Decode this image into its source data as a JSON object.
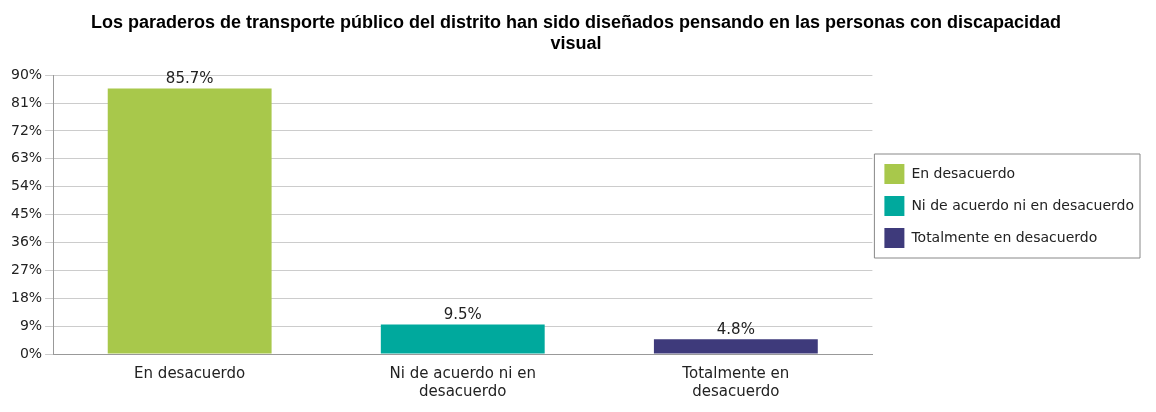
{
  "chart_data": {
    "type": "bar",
    "title": "Los paraderos de transporte público del distrito han sido diseñados pensando en las personas con discapacidad visual",
    "categories": [
      "En desacuerdo",
      "Ni de acuerdo ni en desacuerdo",
      "Totalmente en desacuerdo"
    ],
    "series": [
      {
        "name": "En desacuerdo",
        "color": "#a8c84b",
        "values": [
          85.7,
          null,
          null
        ],
        "value_labels": [
          "85.7%",
          null,
          null
        ]
      },
      {
        "name": "Ni de acuerdo ni en desacuerdo",
        "color": "#00a99d",
        "values": [
          null,
          9.5,
          null
        ],
        "value_labels": [
          null,
          "9.5%",
          null
        ]
      },
      {
        "name": "Totalmente en desacuerdo",
        "color": "#3e3a7b",
        "values": [
          null,
          null,
          4.8
        ],
        "value_labels": [
          null,
          null,
          "4.8%"
        ]
      }
    ],
    "ylim": [
      0,
      90
    ],
    "yticks": [
      {
        "value": 0,
        "label": "0%"
      },
      {
        "value": 9,
        "label": "9%"
      },
      {
        "value": 18,
        "label": "18%"
      },
      {
        "value": 27,
        "label": "27%"
      },
      {
        "value": 36,
        "label": "36%"
      },
      {
        "value": 45,
        "label": "45%"
      },
      {
        "value": 54,
        "label": "54%"
      },
      {
        "value": 63,
        "label": "63%"
      },
      {
        "value": 72,
        "label": "72%"
      },
      {
        "value": 81,
        "label": "81%"
      },
      {
        "value": 90,
        "label": "90%"
      }
    ],
    "grid": "y",
    "legend": "right"
  }
}
